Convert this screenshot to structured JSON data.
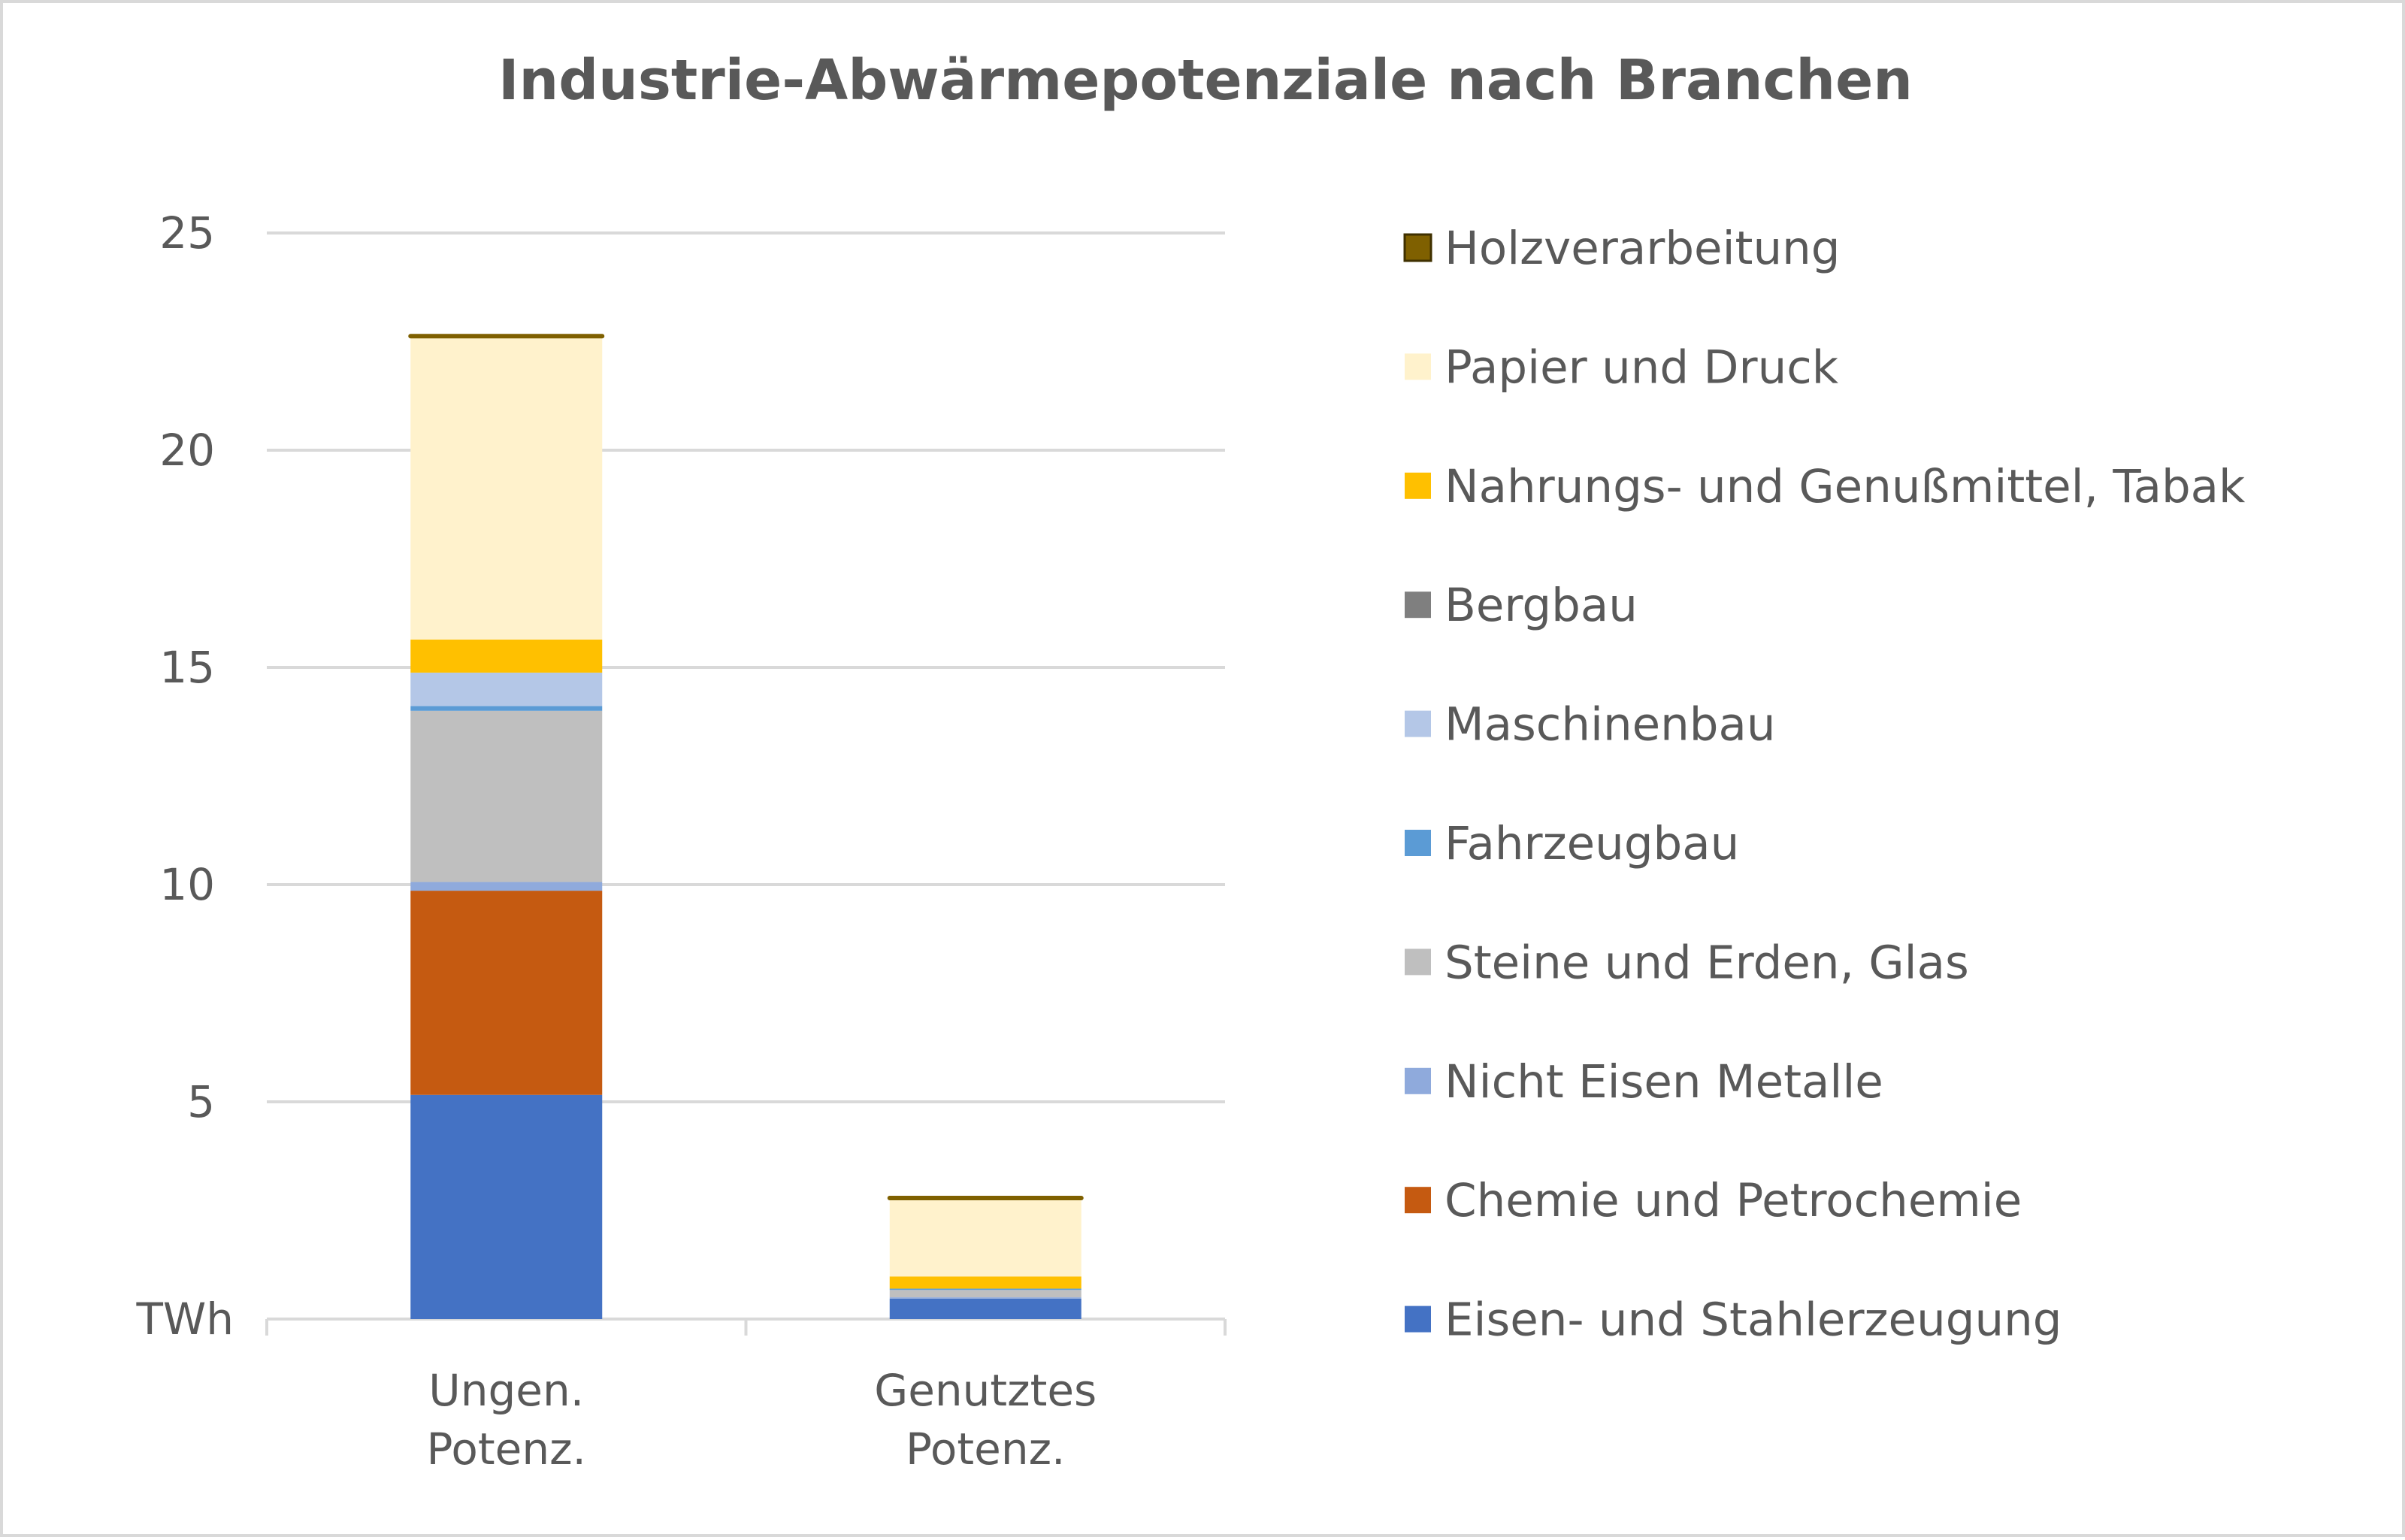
{
  "chart_data": {
    "type": "bar",
    "stacked": true,
    "title": "Industrie-Abwärmepotenziale nach Branchen",
    "ylabel": "TWh",
    "ylim": [
      0,
      25
    ],
    "yticks": [
      5,
      10,
      15,
      20,
      25
    ],
    "grid": true,
    "legend_position": "right",
    "categories": [
      "Ungen.\nPotenz.",
      "Genutztes\nPotenz."
    ],
    "series": [
      {
        "name": "Eisen- und Stahlerzeugung",
        "color": "#4472C4",
        "values": [
          5.16,
          0.47
        ]
      },
      {
        "name": "Chemie und  Petrochemie",
        "color": "#C55A11",
        "values": [
          4.7,
          0.0
        ]
      },
      {
        "name": "Nicht Eisen Metalle",
        "color": "#8FAADC",
        "values": [
          0.2,
          0.03
        ]
      },
      {
        "name": "Steine und Erden, Glas",
        "color": "#BFBFBF",
        "values": [
          3.94,
          0.17
        ]
      },
      {
        "name": "Fahrzeugbau",
        "color": "#5B9BD5",
        "values": [
          0.11,
          0.03
        ]
      },
      {
        "name": "Maschinenbau",
        "color": "#B4C7E7",
        "values": [
          0.77,
          0.0
        ]
      },
      {
        "name": "Bergbau",
        "color": "#7F7F7F",
        "values": [
          0.0,
          0.0
        ]
      },
      {
        "name": "Nahrungs- und Genußmittel, Tabak",
        "color": "#FFC000",
        "values": [
          0.76,
          0.28
        ]
      },
      {
        "name": "Papier und Druck",
        "color": "#FFF2CC",
        "values": [
          6.97,
          1.77
        ]
      },
      {
        "name": "Holzverarbeitung",
        "color": "#7F6000",
        "values": [
          0.05,
          0.07
        ]
      }
    ]
  }
}
